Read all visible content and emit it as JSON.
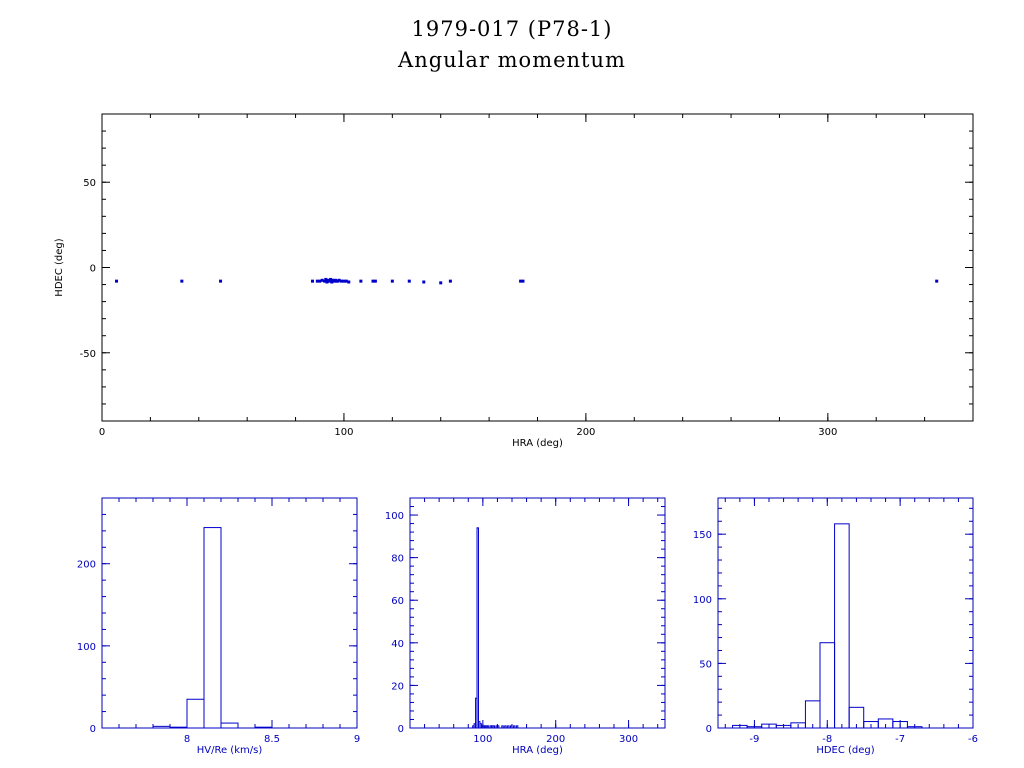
{
  "title": {
    "line1": "1979-017 (P78-1)",
    "line2": "Angular momentum"
  },
  "colors": {
    "axes_main": "#000000",
    "data": "#0000cc",
    "axes_hist": "#0000bb"
  },
  "chart_data": [
    {
      "type": "scatter",
      "xlabel": "HRA (deg)",
      "ylabel": "HDEC (deg)",
      "xlim": [
        0,
        360
      ],
      "ylim": [
        -90,
        90
      ],
      "xticks": [
        0,
        100,
        200,
        300
      ],
      "yticks": [
        -50,
        0,
        50
      ],
      "x": [
        6,
        33,
        49,
        87,
        89,
        90,
        91,
        92,
        92.5,
        93,
        93.5,
        94,
        94.5,
        95,
        95.5,
        96,
        96.5,
        97,
        97.5,
        98,
        99,
        100,
        101,
        102,
        107,
        112,
        113,
        120,
        127,
        133,
        140,
        144,
        173,
        174,
        345
      ],
      "y": [
        -8,
        -8,
        -8,
        -8,
        -8,
        -8,
        -7.5,
        -8,
        -7,
        -8.5,
        -7.5,
        -8,
        -7,
        -8.5,
        -7.5,
        -8,
        -7.5,
        -8,
        -8,
        -7.5,
        -8,
        -8,
        -8,
        -8.5,
        -8,
        -8,
        -8,
        -8,
        -8,
        -8.5,
        -9,
        -8,
        -8,
        -8,
        -8
      ]
    },
    {
      "type": "bar",
      "xlabel": "HV/Re (km/s)",
      "ylabel": "",
      "xlim": [
        7.5,
        9.0
      ],
      "ylim": [
        0,
        280
      ],
      "xticks": [
        8,
        8.5,
        9
      ],
      "yticks": [
        0,
        100,
        200
      ],
      "bin_edges": [
        7.8,
        7.9,
        8.0,
        8.1,
        8.2,
        8.3,
        8.4,
        8.5,
        8.6
      ],
      "values": [
        2,
        1,
        35,
        244,
        6,
        0,
        1,
        0
      ]
    },
    {
      "type": "bar",
      "xlabel": "HRA (deg)",
      "ylabel": "",
      "xlim": [
        0,
        350
      ],
      "ylim": [
        0,
        108
      ],
      "xticks": [
        100,
        200,
        300
      ],
      "yticks": [
        0,
        20,
        40,
        60,
        80,
        100
      ],
      "bin_edges": [
        86,
        88,
        90,
        92,
        94,
        96,
        98,
        100,
        102,
        104,
        106,
        108,
        110,
        112,
        114,
        116,
        118,
        120,
        122,
        124,
        126,
        128,
        130,
        132,
        134,
        136,
        138,
        140,
        142,
        144,
        146,
        148,
        150
      ],
      "values": [
        1,
        2,
        14,
        94,
        3,
        2,
        1,
        1,
        1,
        1,
        1,
        0,
        1,
        1,
        1,
        0,
        1,
        1,
        0,
        0,
        1,
        0,
        1,
        0,
        1,
        0,
        1,
        0,
        1,
        0,
        1,
        0
      ]
    },
    {
      "type": "bar",
      "xlabel": "HDEC (deg)",
      "ylabel": "",
      "xlim": [
        -9.5,
        -6.0
      ],
      "ylim": [
        0,
        178
      ],
      "xticks": [
        -9,
        -8,
        -7,
        -6
      ],
      "yticks": [
        0,
        50,
        100,
        150
      ],
      "bin_edges": [
        -9.3,
        -9.1,
        -8.9,
        -8.7,
        -8.5,
        -8.3,
        -8.1,
        -7.9,
        -7.7,
        -7.5,
        -7.3,
        -7.1,
        -6.9,
        -6.7,
        -6.5
      ],
      "values": [
        2,
        1,
        3,
        2,
        4,
        21,
        66,
        158,
        16,
        5,
        7,
        5,
        1,
        0
      ]
    }
  ]
}
